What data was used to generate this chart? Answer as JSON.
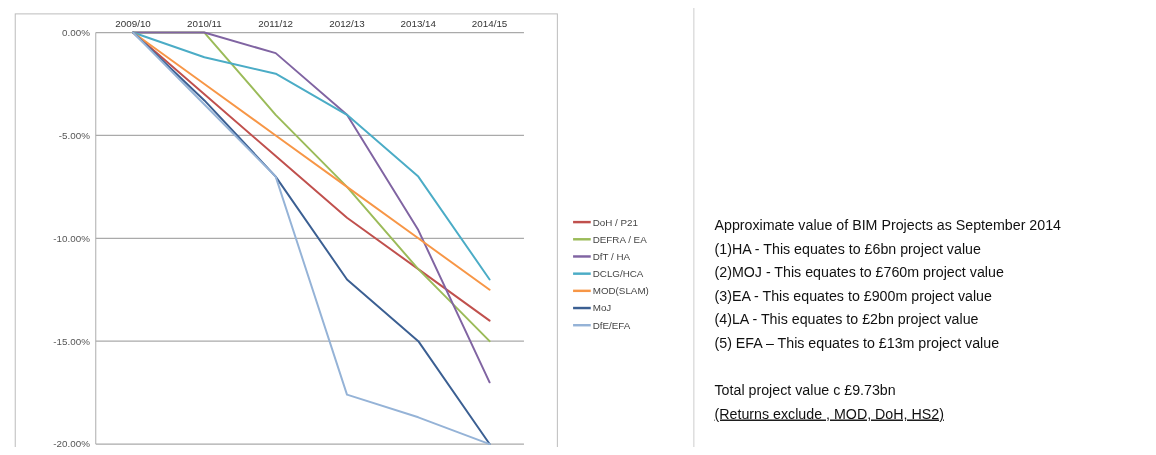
{
  "chart_data": {
    "type": "line",
    "categories": [
      "2009/10",
      "2010/11",
      "2011/12",
      "2012/13",
      "2013/14",
      "2014/15"
    ],
    "series": [
      {
        "name": "DoH / P21",
        "color": "#c0504d",
        "values": [
          0,
          -3,
          -6,
          -9,
          -11.5,
          -14
        ]
      },
      {
        "name": "DEFRA / EA",
        "color": "#9bbb59",
        "values": [
          0,
          0,
          -4,
          -7.5,
          -11.5,
          -15
        ]
      },
      {
        "name": "DfT / HA",
        "color": "#8064a2",
        "values": [
          0,
          0,
          -1,
          -4,
          -9.6,
          -17
        ]
      },
      {
        "name": "DCLG/HCA",
        "color": "#4bacc6",
        "values": [
          0,
          -1.2,
          -2,
          -4,
          -7,
          -12
        ]
      },
      {
        "name": "MOD(SLAM)",
        "color": "#f79646",
        "values": [
          0,
          -2.5,
          -5,
          -7.5,
          -10,
          -12.5
        ]
      },
      {
        "name": "MoJ",
        "color": "#3b5f92",
        "values": [
          0,
          -3.3,
          -7,
          -12,
          -15,
          -20
        ]
      },
      {
        "name": "DfE/EFA",
        "color": "#95b3d7",
        "values": [
          0,
          -3.5,
          -7,
          -17.6,
          -18.7,
          -20
        ]
      }
    ],
    "ylim": [
      -20,
      0
    ],
    "yticks": [
      {
        "value": 0,
        "label": "0.00%"
      },
      {
        "value": -5,
        "label": "-5.00%"
      },
      {
        "value": -10,
        "label": "-10.00%"
      },
      {
        "value": -15,
        "label": "-15.00%"
      },
      {
        "value": -20,
        "label": "-20.00%"
      }
    ],
    "grid": "y",
    "legend": "right",
    "marker": "none",
    "line_style": "solid",
    "annotations": [
      "Approximate value of BIM Projects as September 2014",
      "(1)HA - This equates to £6bn project value",
      "(2)MOJ - This equates to £760m project value",
      "(3)EA - This equates to £900m project value",
      "(4)LA - This equates to £2bn project value",
      "(5) EFA – This equates to £13m project value",
      "Total project value c £9.73bn",
      "(Returns exclude , MOD, DoH, HS2)"
    ]
  }
}
